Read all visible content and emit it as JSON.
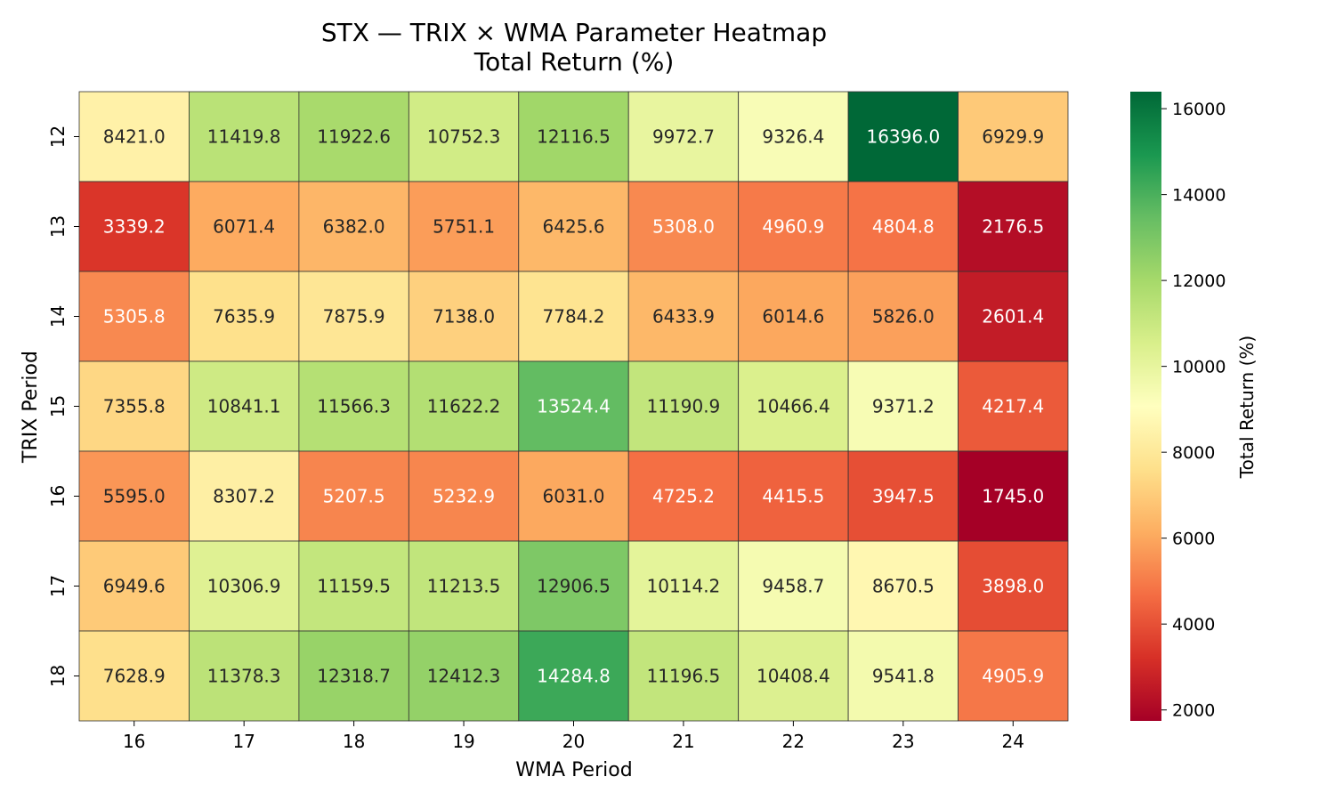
{
  "chart_data": {
    "type": "heatmap",
    "title": "STX — TRIX × WMA Parameter Heatmap",
    "subtitle": "Total Return (%)",
    "xlabel": "WMA Period",
    "ylabel": "TRIX Period",
    "x_categories": [
      "16",
      "17",
      "18",
      "19",
      "20",
      "21",
      "22",
      "23",
      "24"
    ],
    "y_categories": [
      "12",
      "13",
      "14",
      "15",
      "16",
      "17",
      "18"
    ],
    "values": [
      [
        8421.0,
        11419.8,
        11922.6,
        10752.3,
        12116.5,
        9972.7,
        9326.4,
        16396.0,
        6929.9
      ],
      [
        3339.2,
        6071.4,
        6382.0,
        5751.1,
        6425.6,
        5308.0,
        4960.9,
        4804.8,
        2176.5
      ],
      [
        5305.8,
        7635.9,
        7875.9,
        7138.0,
        7784.2,
        6433.9,
        6014.6,
        5826.0,
        2601.4
      ],
      [
        7355.8,
        10841.1,
        11566.3,
        11622.2,
        13524.4,
        11190.9,
        10466.4,
        9371.2,
        4217.4
      ],
      [
        5595.0,
        8307.2,
        5207.5,
        5232.9,
        6031.0,
        4725.2,
        4415.5,
        3947.5,
        1745.0
      ],
      [
        6949.6,
        10306.9,
        11159.5,
        11213.5,
        12906.5,
        10114.2,
        9458.7,
        8670.5,
        3898.0
      ],
      [
        7628.9,
        11378.3,
        12318.7,
        12412.3,
        14284.8,
        11196.5,
        10408.4,
        9541.8,
        4905.9
      ]
    ],
    "value_format": "%.1f",
    "colormap": "RdYlGn",
    "colorbar": {
      "label": "Total Return (%)",
      "range": [
        1745.0,
        16396.0
      ],
      "ticks": [
        2000,
        4000,
        6000,
        8000,
        10000,
        12000,
        14000,
        16000
      ]
    }
  }
}
